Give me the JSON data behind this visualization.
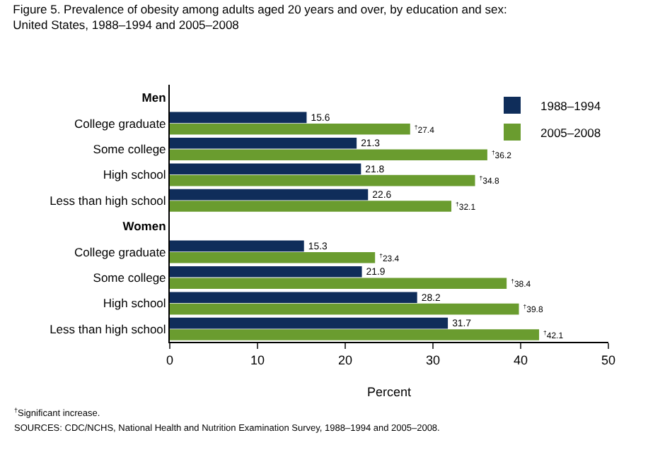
{
  "chart_data": {
    "type": "bar",
    "orientation": "horizontal",
    "title": "Figure 5. Prevalence of obesity among adults aged 20 years and over, by education and sex: United States, 1988–1994 and 2005–2008",
    "xlabel": "Percent",
    "categories": [
      "Men",
      "College graduate",
      "Some college",
      "High school",
      "Less than high school",
      "Women",
      "College graduate",
      "Some college",
      "High school",
      "Less than high school"
    ],
    "series": [
      {
        "name": "1988–1994",
        "color": "#0f2d5a",
        "values": [
          null,
          15.6,
          21.3,
          21.8,
          22.6,
          null,
          15.3,
          21.9,
          28.2,
          31.7
        ],
        "value_labels": [
          null,
          "15.6",
          "21.3",
          "21.8",
          "22.6",
          null,
          "15.3",
          "21.9",
          "28.2",
          "31.7"
        ]
      },
      {
        "name": "2005–2008",
        "color": "#6a9c2f",
        "values": [
          null,
          27.4,
          36.2,
          34.8,
          32.1,
          null,
          23.4,
          38.4,
          39.8,
          42.1
        ],
        "value_labels": [
          null,
          "$^{†}$27.4",
          "$^{†}$36.2",
          "$^{†}$34.8",
          "$^{†}$32.1",
          null,
          "$^{†}$23.4",
          "$^{†}$38.4",
          "$^{†}$39.8",
          "$^{†}$42.1"
        ]
      }
    ],
    "xlim": [
      0,
      50
    ],
    "xticks": [
      0,
      10,
      20,
      30,
      40,
      50
    ],
    "legend": "top right",
    "annotations": [
      "$^{†}$Significant increase.",
      "SOURCES: CDC/NCHS, National Health and Nutrition Examination Survey, 1988–1994 and 2005–2008."
    ]
  }
}
